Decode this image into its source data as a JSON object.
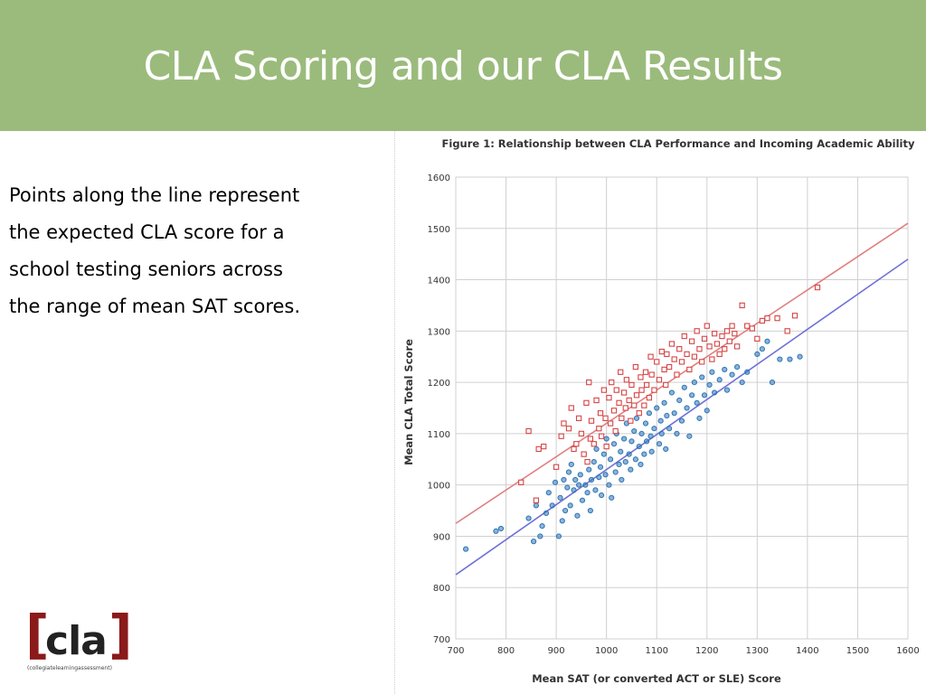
{
  "slide": {
    "title": "CLA Scoring and our CLA Results",
    "body_lines": [
      "Points along the line represent",
      "the expected CLA score for a",
      "school testing seniors across",
      "the range of mean SAT scores."
    ],
    "logo": {
      "open_bracket": "[",
      "word": "cla",
      "close_bracket": "]",
      "tagline": "(collegiatelearningassessment)"
    }
  },
  "colors": {
    "title_band": "#9bbb7c",
    "freshmen_color": "#2e75b6",
    "seniors_color": "#d64545",
    "freshman_line": "#6f72d8",
    "senior_line": "#e07f7f",
    "grid": "#d0d0d0"
  },
  "chart_data": {
    "type": "scatter",
    "title": "Figure 1: Relationship between CLA Performance and Incoming Academic Ability",
    "xlabel": "Mean SAT (or converted ACT or SLE) Score",
    "ylabel": "Mean CLA Total Score",
    "xlim": [
      700,
      1600
    ],
    "ylim": [
      700,
      1600
    ],
    "xticks": [
      700,
      800,
      900,
      1000,
      1100,
      1200,
      1300,
      1400,
      1500,
      1600
    ],
    "yticks": [
      700,
      800,
      900,
      1000,
      1100,
      1200,
      1300,
      1400,
      1500,
      1600
    ],
    "grid": true,
    "series": [
      {
        "marker": "circle",
        "color": "#2e75b6",
        "points": [
          [
            720,
            875
          ],
          [
            780,
            910
          ],
          [
            790,
            915
          ],
          [
            845,
            935
          ],
          [
            855,
            890
          ],
          [
            860,
            960
          ],
          [
            868,
            900
          ],
          [
            872,
            920
          ],
          [
            880,
            945
          ],
          [
            885,
            985
          ],
          [
            892,
            960
          ],
          [
            898,
            1005
          ],
          [
            905,
            900
          ],
          [
            908,
            975
          ],
          [
            912,
            930
          ],
          [
            915,
            1010
          ],
          [
            918,
            950
          ],
          [
            922,
            995
          ],
          [
            925,
            1025
          ],
          [
            928,
            960
          ],
          [
            930,
            1040
          ],
          [
            935,
            990
          ],
          [
            938,
            1010
          ],
          [
            942,
            940
          ],
          [
            945,
            1000
          ],
          [
            948,
            1020
          ],
          [
            952,
            970
          ],
          [
            955,
            1060
          ],
          [
            958,
            1000
          ],
          [
            962,
            985
          ],
          [
            965,
            1030
          ],
          [
            968,
            950
          ],
          [
            970,
            1010
          ],
          [
            975,
            1045
          ],
          [
            978,
            990
          ],
          [
            980,
            1070
          ],
          [
            985,
            1015
          ],
          [
            988,
            1035
          ],
          [
            990,
            980
          ],
          [
            995,
            1060
          ],
          [
            998,
            1020
          ],
          [
            1000,
            1090
          ],
          [
            1005,
            1000
          ],
          [
            1008,
            1050
          ],
          [
            1010,
            975
          ],
          [
            1015,
            1080
          ],
          [
            1018,
            1025
          ],
          [
            1020,
            1100
          ],
          [
            1025,
            1040
          ],
          [
            1028,
            1065
          ],
          [
            1030,
            1010
          ],
          [
            1035,
            1090
          ],
          [
            1038,
            1045
          ],
          [
            1040,
            1120
          ],
          [
            1045,
            1060
          ],
          [
            1048,
            1030
          ],
          [
            1050,
            1085
          ],
          [
            1055,
            1105
          ],
          [
            1058,
            1050
          ],
          [
            1060,
            1130
          ],
          [
            1065,
            1075
          ],
          [
            1068,
            1040
          ],
          [
            1070,
            1100
          ],
          [
            1075,
            1060
          ],
          [
            1078,
            1120
          ],
          [
            1080,
            1085
          ],
          [
            1085,
            1140
          ],
          [
            1088,
            1095
          ],
          [
            1090,
            1065
          ],
          [
            1095,
            1110
          ],
          [
            1100,
            1150
          ],
          [
            1105,
            1080
          ],
          [
            1108,
            1125
          ],
          [
            1110,
            1100
          ],
          [
            1115,
            1160
          ],
          [
            1118,
            1070
          ],
          [
            1120,
            1135
          ],
          [
            1125,
            1110
          ],
          [
            1130,
            1180
          ],
          [
            1135,
            1140
          ],
          [
            1140,
            1100
          ],
          [
            1145,
            1165
          ],
          [
            1150,
            1125
          ],
          [
            1155,
            1190
          ],
          [
            1160,
            1150
          ],
          [
            1165,
            1095
          ],
          [
            1170,
            1175
          ],
          [
            1175,
            1200
          ],
          [
            1180,
            1160
          ],
          [
            1185,
            1130
          ],
          [
            1190,
            1210
          ],
          [
            1195,
            1175
          ],
          [
            1200,
            1145
          ],
          [
            1205,
            1195
          ],
          [
            1210,
            1220
          ],
          [
            1215,
            1180
          ],
          [
            1225,
            1205
          ],
          [
            1235,
            1225
          ],
          [
            1240,
            1185
          ],
          [
            1250,
            1215
          ],
          [
            1260,
            1230
          ],
          [
            1270,
            1200
          ],
          [
            1280,
            1220
          ],
          [
            1300,
            1255
          ],
          [
            1310,
            1265
          ],
          [
            1320,
            1280
          ],
          [
            1330,
            1200
          ],
          [
            1345,
            1245
          ],
          [
            1365,
            1245
          ],
          [
            1385,
            1250
          ]
        ]
      },
      {
        "marker": "square",
        "color": "#d64545",
        "points": [
          [
            830,
            1005
          ],
          [
            845,
            1105
          ],
          [
            860,
            970
          ],
          [
            865,
            1070
          ],
          [
            875,
            1075
          ],
          [
            900,
            1035
          ],
          [
            910,
            1095
          ],
          [
            915,
            1120
          ],
          [
            925,
            1110
          ],
          [
            930,
            1150
          ],
          [
            935,
            1070
          ],
          [
            940,
            1080
          ],
          [
            945,
            1130
          ],
          [
            950,
            1100
          ],
          [
            955,
            1060
          ],
          [
            960,
            1160
          ],
          [
            962,
            1045
          ],
          [
            965,
            1200
          ],
          [
            968,
            1090
          ],
          [
            970,
            1125
          ],
          [
            975,
            1080
          ],
          [
            980,
            1165
          ],
          [
            985,
            1110
          ],
          [
            988,
            1140
          ],
          [
            990,
            1095
          ],
          [
            995,
            1185
          ],
          [
            998,
            1130
          ],
          [
            1000,
            1075
          ],
          [
            1005,
            1170
          ],
          [
            1008,
            1120
          ],
          [
            1010,
            1200
          ],
          [
            1015,
            1145
          ],
          [
            1018,
            1105
          ],
          [
            1020,
            1185
          ],
          [
            1025,
            1160
          ],
          [
            1028,
            1220
          ],
          [
            1030,
            1130
          ],
          [
            1035,
            1180
          ],
          [
            1038,
            1150
          ],
          [
            1040,
            1205
          ],
          [
            1045,
            1165
          ],
          [
            1048,
            1125
          ],
          [
            1050,
            1195
          ],
          [
            1055,
            1155
          ],
          [
            1058,
            1230
          ],
          [
            1060,
            1175
          ],
          [
            1065,
            1140
          ],
          [
            1068,
            1210
          ],
          [
            1070,
            1185
          ],
          [
            1075,
            1155
          ],
          [
            1078,
            1220
          ],
          [
            1080,
            1195
          ],
          [
            1085,
            1170
          ],
          [
            1088,
            1250
          ],
          [
            1090,
            1215
          ],
          [
            1095,
            1185
          ],
          [
            1100,
            1240
          ],
          [
            1105,
            1205
          ],
          [
            1110,
            1260
          ],
          [
            1115,
            1225
          ],
          [
            1118,
            1195
          ],
          [
            1120,
            1255
          ],
          [
            1125,
            1230
          ],
          [
            1130,
            1275
          ],
          [
            1135,
            1245
          ],
          [
            1140,
            1215
          ],
          [
            1145,
            1265
          ],
          [
            1150,
            1240
          ],
          [
            1155,
            1290
          ],
          [
            1160,
            1255
          ],
          [
            1165,
            1225
          ],
          [
            1170,
            1280
          ],
          [
            1175,
            1250
          ],
          [
            1180,
            1300
          ],
          [
            1185,
            1265
          ],
          [
            1190,
            1240
          ],
          [
            1195,
            1285
          ],
          [
            1200,
            1310
          ],
          [
            1205,
            1270
          ],
          [
            1210,
            1245
          ],
          [
            1215,
            1295
          ],
          [
            1220,
            1275
          ],
          [
            1225,
            1255
          ],
          [
            1230,
            1290
          ],
          [
            1235,
            1265
          ],
          [
            1240,
            1300
          ],
          [
            1245,
            1280
          ],
          [
            1250,
            1310
          ],
          [
            1255,
            1295
          ],
          [
            1260,
            1270
          ],
          [
            1270,
            1350
          ],
          [
            1280,
            1310
          ],
          [
            1290,
            1305
          ],
          [
            1300,
            1285
          ],
          [
            1310,
            1320
          ],
          [
            1320,
            1325
          ],
          [
            1340,
            1325
          ],
          [
            1360,
            1300
          ],
          [
            1375,
            1330
          ],
          [
            1420,
            1385
          ]
        ]
      }
    ],
    "fit_lines": [
      {
        "color": "#6f72d8",
        "x": [
          700,
          1600
        ],
        "y": [
          825,
          1440
        ]
      },
      {
        "color": "#e07f7f",
        "x": [
          700,
          1600
        ],
        "y": [
          925,
          1510
        ]
      }
    ]
  }
}
